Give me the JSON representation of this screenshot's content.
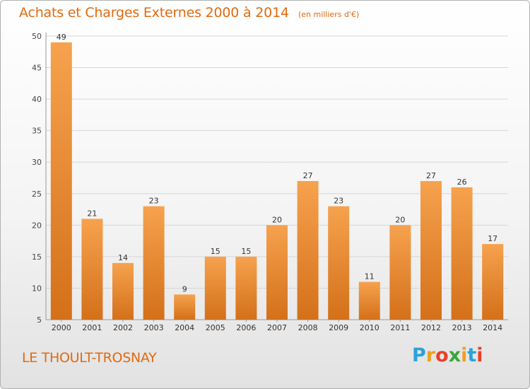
{
  "chart_data": {
    "type": "bar",
    "title": "Achats et Charges Externes 2000 à 2014",
    "subtitle": "(en milliers d'€)",
    "categories": [
      "2000",
      "2001",
      "2002",
      "2003",
      "2004",
      "2005",
      "2006",
      "2007",
      "2008",
      "2009",
      "2010",
      "2011",
      "2012",
      "2013",
      "2014"
    ],
    "values": [
      49,
      21,
      14,
      23,
      9,
      15,
      15,
      20,
      27,
      23,
      11,
      20,
      27,
      26,
      17
    ],
    "xlabel": "",
    "ylabel": "",
    "ylim": [
      5,
      50
    ],
    "yticks": [
      5,
      10,
      15,
      20,
      25,
      30,
      35,
      40,
      45,
      50
    ],
    "grid": true,
    "data_labels": true,
    "colors": {
      "bar_top": "#f6a24e",
      "bar_bottom": "#d4701a",
      "text": "#e06a10",
      "grid": "#d6d6d6"
    }
  },
  "footer": {
    "place_name": "LE THOULT-TROSNAY",
    "logo_text": "Proxiti",
    "logo_colors": [
      "#2aa3d8",
      "#f0a020",
      "#e8402a",
      "#3aa63a",
      "#f0a020",
      "#2aa3d8",
      "#e8402a"
    ]
  }
}
